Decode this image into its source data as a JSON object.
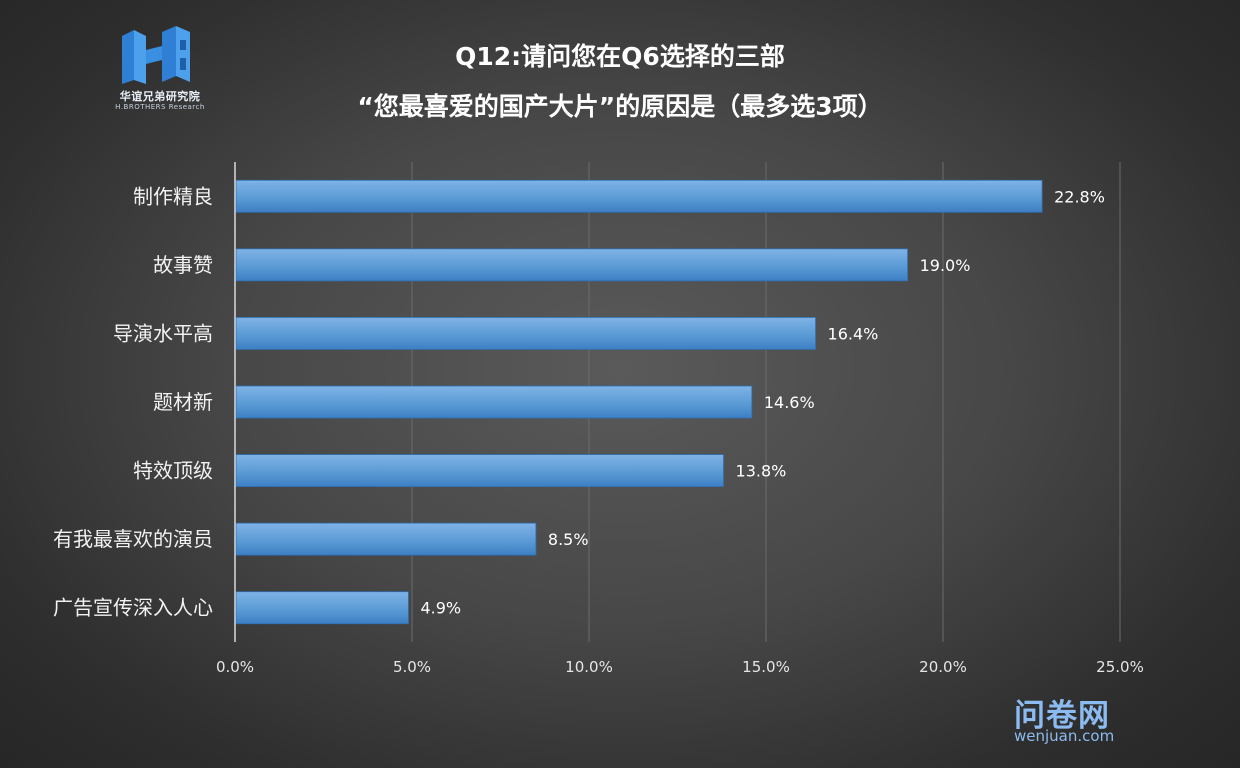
{
  "logo": {
    "cn_text": "华谊兄弟研究院",
    "en_text": "H.BROTHERS  Research",
    "color": "#3a8fe0"
  },
  "watermark": {
    "cn_text": "问卷网",
    "en_text": "wenjuan.com",
    "color": "#8bbbf0"
  },
  "chart_data": {
    "type": "bar",
    "orientation": "horizontal",
    "title_line1": "Q12:请问您在Q6选择的三部",
    "title_line2": "“您最喜爱的国产大片”的原因是（最多选3项）",
    "categories": [
      "制作精良",
      "故事赞",
      "导演水平高",
      "题材新",
      "特效顶级",
      "有我最喜欢的演员",
      "广告宣传深入人心"
    ],
    "values": [
      22.8,
      19.0,
      16.4,
      14.6,
      13.8,
      8.5,
      4.9
    ],
    "value_labels": [
      "22.8%",
      "19.0%",
      "16.4%",
      "14.6%",
      "13.8%",
      "8.5%",
      "4.9%"
    ],
    "x_ticks": [
      0,
      5,
      10,
      15,
      20,
      25
    ],
    "x_tick_labels": [
      "0.0%",
      "5.0%",
      "10.0%",
      "15.0%",
      "20.0%",
      "25.0%"
    ],
    "xlim": [
      0,
      25
    ],
    "xlabel": "",
    "ylabel": "",
    "grid": "vertical",
    "legend": "none",
    "bar_color": "#5b9bd5",
    "bar_color_light": "#7fb3e6",
    "bar_color_dark": "#3d7fc4"
  }
}
